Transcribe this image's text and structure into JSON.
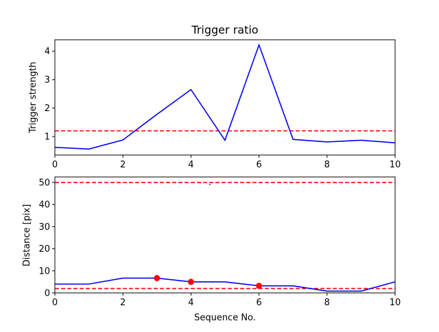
{
  "chart_data": [
    {
      "type": "line",
      "title": "Trigger ratio",
      "xlabel": "Sequence No.",
      "ylabel": "Trigger strength",
      "xlim": [
        0,
        10
      ],
      "ylim": [
        0.35,
        4.4
      ],
      "xticks": [
        0,
        2,
        4,
        6,
        8,
        10
      ],
      "yticks": [
        1,
        2,
        3,
        4
      ],
      "series": [
        {
          "color": "#0000ff",
          "x": [
            0,
            1,
            2,
            3,
            4,
            5,
            6,
            7,
            8,
            9,
            10
          ],
          "values": [
            0.62,
            0.56,
            0.88,
            1.78,
            2.65,
            0.87,
            4.22,
            0.9,
            0.81,
            0.87,
            0.78
          ]
        }
      ],
      "hlines": [
        {
          "y": 1.2,
          "color": "#ff0000",
          "style": "dashed"
        }
      ],
      "grid": false
    },
    {
      "type": "line",
      "xlabel": "Sequence No.",
      "ylabel": "Distance [pix]",
      "xlim": [
        0,
        10
      ],
      "ylim": [
        0,
        52.5
      ],
      "xticks": [
        0,
        2,
        4,
        6,
        8,
        10
      ],
      "yticks": [
        0,
        10,
        20,
        30,
        40,
        50
      ],
      "series": [
        {
          "color": "#0000ff",
          "x": [
            0,
            1,
            2,
            3,
            4,
            5,
            6,
            7,
            8,
            9,
            10
          ],
          "values": [
            4,
            4,
            6.7,
            6.7,
            5,
            5,
            3.2,
            3.2,
            0.8,
            0.8,
            5
          ]
        }
      ],
      "points": {
        "color": "#ff0000",
        "x": [
          3,
          4,
          6
        ],
        "values": [
          6.7,
          5,
          3.2
        ]
      },
      "hlines": [
        {
          "y": 50,
          "color": "#ff0000",
          "style": "dashed"
        },
        {
          "y": 2,
          "color": "#ff0000",
          "style": "dashed"
        }
      ],
      "grid": false
    }
  ]
}
